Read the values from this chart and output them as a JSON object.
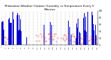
{
  "title": "Milwaukee Weather Outdoor Humidity vs Temperature Every 5 Minutes",
  "title_fontsize": 3.0,
  "background_color": "#ffffff",
  "plot_bg_color": "#ffffff",
  "grid_color": "#888888",
  "blue_color": "#0000cc",
  "red_color": "#dd0000",
  "ylim": [
    0,
    100
  ],
  "n_points": 288,
  "seed": 7,
  "ytick_vals": [
    0,
    20,
    40,
    60,
    80,
    100
  ],
  "ytick_labels": [
    "0",
    "20",
    "40",
    "60",
    "80",
    "100"
  ]
}
